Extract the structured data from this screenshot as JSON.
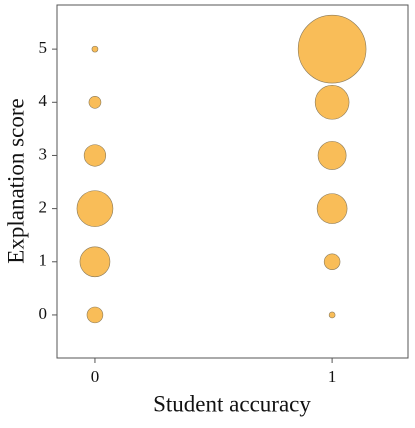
{
  "chart_data": {
    "type": "scatter",
    "x_label": "Student accuracy",
    "y_label": "Explanation score",
    "series": [
      {
        "color": "#f9b94f",
        "x": [
          0,
          0,
          0,
          0,
          0,
          0,
          1,
          1,
          1,
          1,
          1,
          1
        ],
        "values": [
          5,
          4,
          3,
          2,
          1,
          0,
          5,
          4,
          3,
          2,
          1,
          0
        ],
        "sizes": [
          1,
          4,
          13,
          36,
          25,
          7,
          128,
          32,
          22,
          25,
          7,
          1
        ]
      }
    ],
    "xlim": [
      -0.16,
      1.32
    ],
    "ylim": [
      -0.81,
      5.83
    ],
    "xticks": [
      0,
      1
    ],
    "yticks": [
      0,
      1,
      2,
      3,
      4,
      5
    ]
  }
}
